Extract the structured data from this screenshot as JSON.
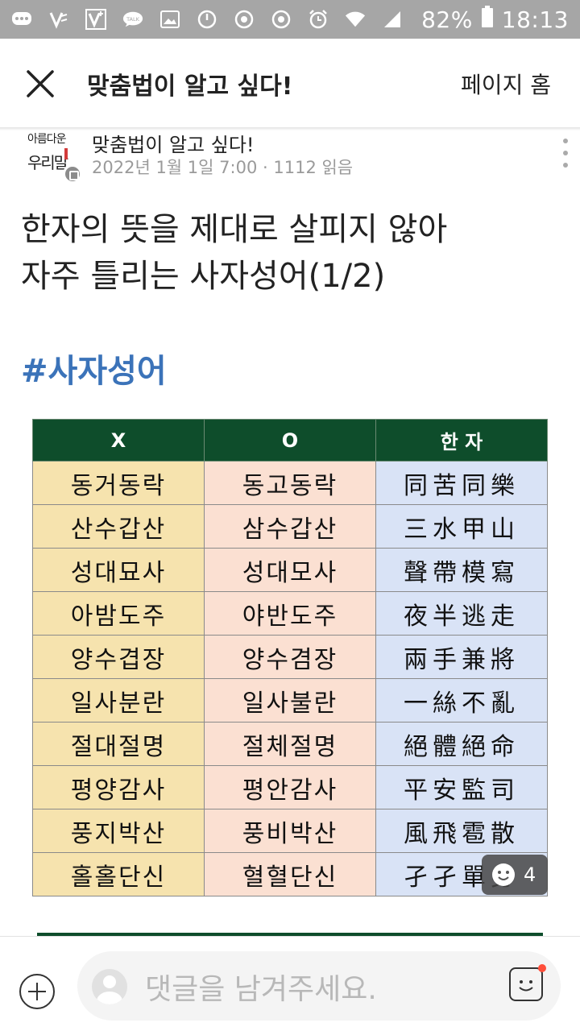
{
  "status_bar": {
    "battery": "82%",
    "time": "18:13"
  },
  "header": {
    "title": "맞춤법이 알고 싶다!",
    "home_label": "페이지 홈"
  },
  "post": {
    "page_name": "맞춤법이 알고 싶다!",
    "avatar_text_line1": "아름다운",
    "avatar_text_line2": "우리말",
    "date": "2022년 1월 1일 7:00",
    "views": "1112 읽음",
    "title_lines": [
      "한자의 뜻을 제대로 살피지 않아",
      "자주 틀리는 사자성어(1/2)"
    ],
    "hashtag": "#사자성어"
  },
  "table": {
    "headers": [
      "X",
      "O",
      "한 자"
    ],
    "rows": [
      [
        "동거동락",
        "동고동락",
        "同苦同樂"
      ],
      [
        "산수갑산",
        "삼수갑산",
        "三水甲山"
      ],
      [
        "성대묘사",
        "성대모사",
        "聲帶模寫"
      ],
      [
        "아밤도주",
        "야반도주",
        "夜半逃走"
      ],
      [
        "양수겹장",
        "양수겸장",
        "兩手兼將"
      ],
      [
        "일사분란",
        "일사불란",
        "一絲不亂"
      ],
      [
        "절대절명",
        "절체절명",
        "絕體絕命"
      ],
      [
        "평양감사",
        "평안감사",
        "平安監司"
      ],
      [
        "풍지박산",
        "풍비박산",
        "風飛雹散"
      ],
      [
        "홀홀단신",
        "혈혈단신",
        "孑孑單身"
      ]
    ]
  },
  "reaction": {
    "count": "4"
  },
  "comment": {
    "placeholder": "댓글을 남겨주세요."
  },
  "colors": {
    "table_header": "#0e4d2b",
    "col_x": "#f6e3ae",
    "col_o": "#fbe0d2",
    "col_hanja": "#d9e3f6",
    "hashtag": "#3b73b9",
    "status_bar": "#a6a6a6"
  },
  "icons": {
    "status": [
      "chat-dots-icon",
      "v-app-icon",
      "v-plus-app-icon",
      "talk-icon",
      "gallery-icon",
      "power-icon",
      "chrome-icon",
      "chrome-icon",
      "alarm-icon",
      "wifi-icon",
      "signal-icon",
      "battery-icon"
    ],
    "header": "close-icon",
    "bottom": [
      "plus-circle-icon",
      "emoji-icon"
    ]
  }
}
